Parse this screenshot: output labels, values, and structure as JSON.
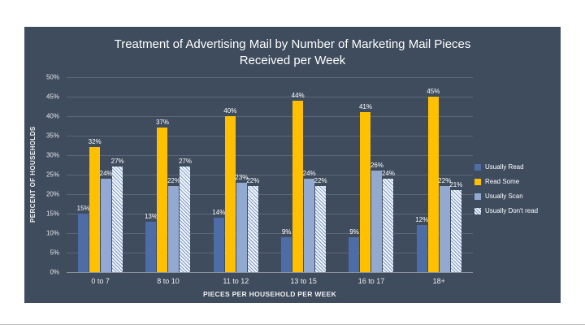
{
  "page": {
    "background": "#ffffff"
  },
  "chart": {
    "background": "#3e4c5e",
    "text_color": "#ffffff",
    "title_line1": "Treatment of Advertising Mail by Number of Marketing Mail Pieces",
    "title_line2": "Received per Week"
  },
  "chart_data": {
    "type": "bar",
    "title": "Treatment of Advertising Mail by Number of Marketing Mail Pieces Received per Week",
    "xlabel": "PIECES PER HOUSEHOLD PER WEEK",
    "ylabel": "PERCENT OF HOUSEHOLDS",
    "ylim": [
      0,
      50
    ],
    "ytick_step": 5,
    "ytick_format": "percent",
    "grid": true,
    "legend_position": "right",
    "data_labels": true,
    "categories": [
      "0 to 7",
      "8 to 10",
      "11 to 12",
      "13 to 15",
      "16 to 17",
      "18+"
    ],
    "series": [
      {
        "name": "Usually Read",
        "color": "#4e6da6",
        "pattern": "solid",
        "values": [
          15,
          13,
          14,
          9,
          9,
          12
        ]
      },
      {
        "name": "Read Some",
        "color": "#fec000",
        "pattern": "solid",
        "values": [
          32,
          37,
          40,
          44,
          41,
          45
        ]
      },
      {
        "name": "Usually Scan",
        "color": "#92a9d1",
        "pattern": "solid",
        "values": [
          24,
          22,
          23,
          24,
          26,
          22
        ]
      },
      {
        "name": "Usually Don't read",
        "color": "#f2f6fb",
        "stripe_color": "#7d98c6",
        "pattern": "hatch",
        "values": [
          27,
          27,
          22,
          22,
          24,
          21
        ]
      }
    ]
  }
}
